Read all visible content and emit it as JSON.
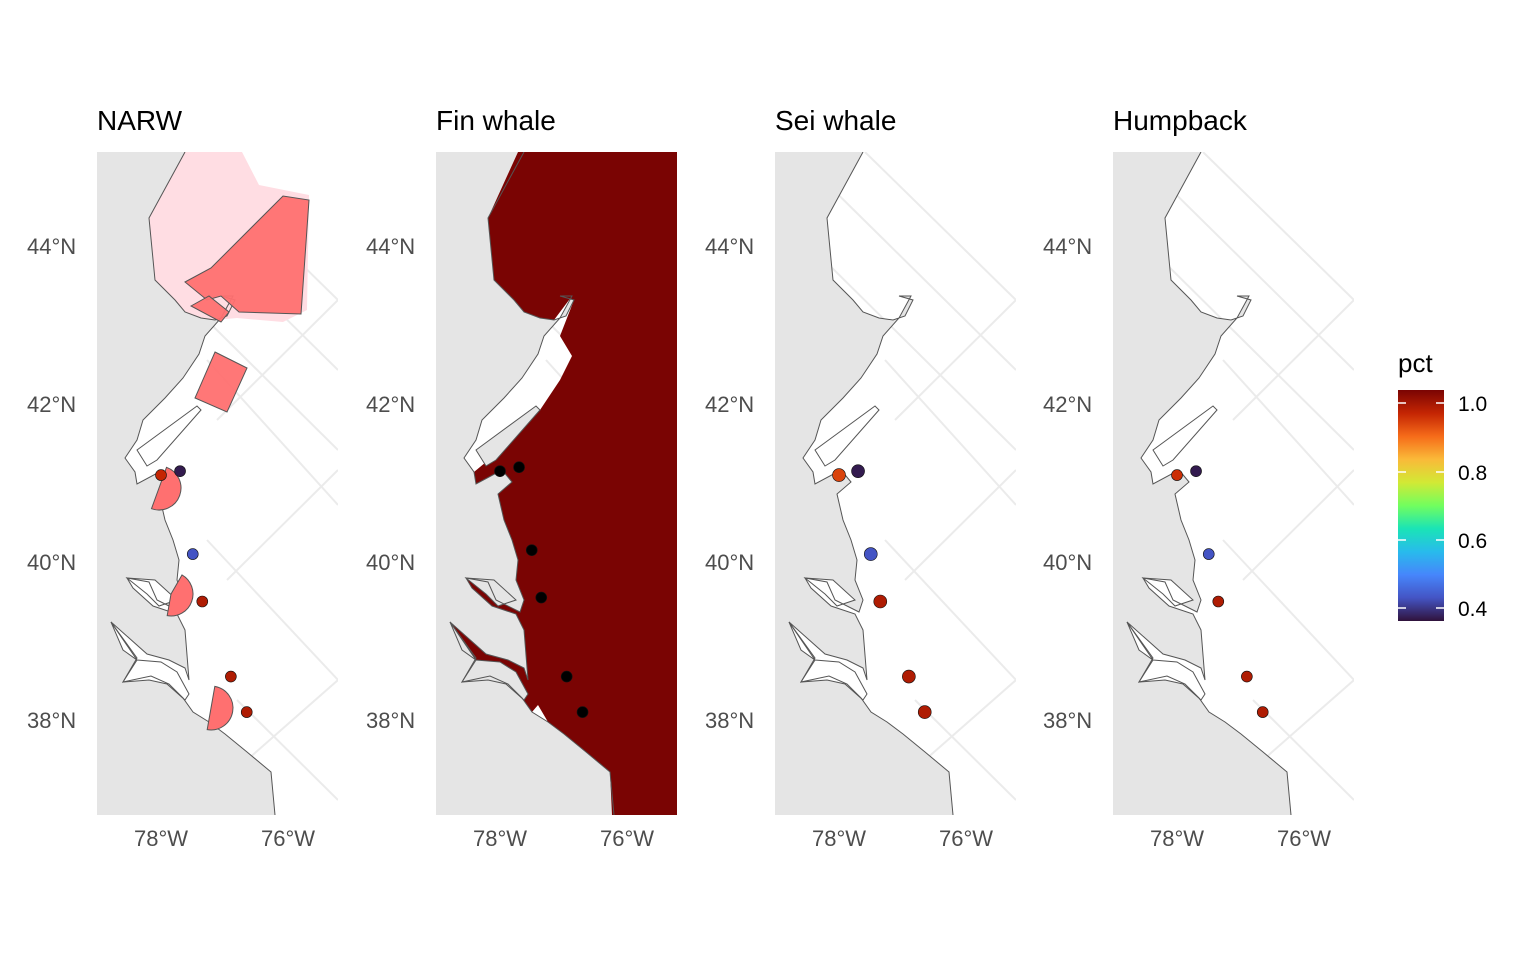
{
  "panels": [
    {
      "id": "narw",
      "title": "NARW",
      "base_fill": "overlay-zones",
      "points": [
        {
          "lon": -78.0,
          "lat": 41.1,
          "pct": 0.98
        },
        {
          "lon": -77.7,
          "lat": 41.15,
          "pct": 0.36
        },
        {
          "lon": -77.5,
          "lat": 40.1,
          "pct": 0.42
        },
        {
          "lon": -77.35,
          "lat": 39.5,
          "pct": 1.0
        },
        {
          "lon": -76.9,
          "lat": 38.55,
          "pct": 1.0
        },
        {
          "lon": -76.65,
          "lat": 38.1,
          "pct": 1.0
        }
      ]
    },
    {
      "id": "fin",
      "title": "Fin whale",
      "base_fill": "full-dark-red",
      "points": [
        {
          "lon": -78.0,
          "lat": 41.15,
          "pct": null
        },
        {
          "lon": -77.7,
          "lat": 41.2,
          "pct": null
        },
        {
          "lon": -77.5,
          "lat": 40.15,
          "pct": null
        },
        {
          "lon": -77.35,
          "lat": 39.55,
          "pct": null
        },
        {
          "lon": -76.95,
          "lat": 38.55,
          "pct": null
        },
        {
          "lon": -76.7,
          "lat": 38.1,
          "pct": null
        }
      ]
    },
    {
      "id": "sei",
      "title": "Sei whale",
      "base_fill": "none",
      "points": [
        {
          "lon": -78.0,
          "lat": 41.1,
          "pct": 0.95
        },
        {
          "lon": -77.7,
          "lat": 41.15,
          "pct": 0.36
        },
        {
          "lon": -77.5,
          "lat": 40.1,
          "pct": 0.42
        },
        {
          "lon": -77.35,
          "lat": 39.5,
          "pct": 1.0
        },
        {
          "lon": -76.9,
          "lat": 38.55,
          "pct": 1.0
        },
        {
          "lon": -76.65,
          "lat": 38.1,
          "pct": 1.0
        }
      ]
    },
    {
      "id": "humpback",
      "title": "Humpback",
      "base_fill": "none",
      "points": [
        {
          "lon": -78.0,
          "lat": 41.1,
          "pct": 0.97
        },
        {
          "lon": -77.7,
          "lat": 41.15,
          "pct": 0.36
        },
        {
          "lon": -77.5,
          "lat": 40.1,
          "pct": 0.42
        },
        {
          "lon": -77.35,
          "lat": 39.5,
          "pct": 1.0
        },
        {
          "lon": -76.9,
          "lat": 38.55,
          "pct": 1.0
        },
        {
          "lon": -76.65,
          "lat": 38.1,
          "pct": 1.0
        }
      ]
    }
  ],
  "axes": {
    "lat_ticks": [
      {
        "value": 44,
        "label": "44°N"
      },
      {
        "value": 42,
        "label": "42°N"
      },
      {
        "value": 40,
        "label": "40°N"
      },
      {
        "value": 38,
        "label": "38°N"
      }
    ],
    "lon_ticks": [
      {
        "value": -78,
        "label": "78°W"
      },
      {
        "value": -76,
        "label": "76°W"
      }
    ]
  },
  "legend": {
    "title": "pct",
    "labels": [
      "1.0",
      "0.8",
      "0.6",
      "0.4"
    ],
    "colors": [
      "#7a0403",
      "#c42503",
      "#f66b19",
      "#faba39",
      "#d2e935",
      "#72fe5e",
      "#1ae4b6",
      "#28bbec",
      "#4686fb",
      "#4454c4",
      "#30123b"
    ]
  },
  "colors": {
    "land": "#e5e5e5",
    "coast_line": "#555555",
    "grid": "#ebebeb",
    "fin_fill": "#7a0403",
    "narw_light_zone": "#ffdde3",
    "narw_dark_zone": "#ff7070"
  }
}
